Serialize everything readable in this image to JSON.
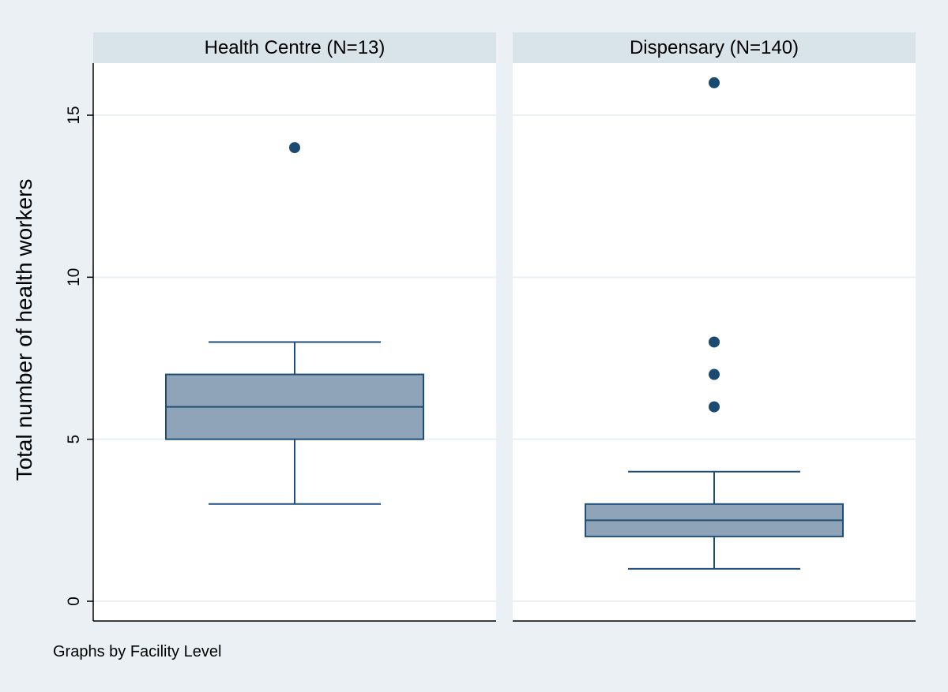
{
  "chart_data": {
    "type": "box",
    "ylabel": "Total number of health workers",
    "ylim": [
      0,
      17
    ],
    "yticks": [
      0,
      5,
      10,
      15
    ],
    "note": "Graphs by Facility Level",
    "colors": {
      "background": "#eaf0f3",
      "panel": "#ffffff",
      "strip": "#d9e4ea",
      "box_fill": "#8fa4b8",
      "box_line": "#1f4e79",
      "outlier": "#1a4a72",
      "grid": "#eaf0f3"
    },
    "panels": [
      {
        "title": "Health Centre (N=13)",
        "whisker_low": 3,
        "q1": 5,
        "median": 6,
        "q3": 7,
        "whisker_high": 8,
        "outliers": [
          14
        ]
      },
      {
        "title": "Dispensary (N=140)",
        "whisker_low": 1,
        "q1": 2,
        "median": 2.5,
        "q3": 3,
        "whisker_high": 4,
        "outliers": [
          6,
          7,
          8,
          16
        ]
      }
    ]
  }
}
